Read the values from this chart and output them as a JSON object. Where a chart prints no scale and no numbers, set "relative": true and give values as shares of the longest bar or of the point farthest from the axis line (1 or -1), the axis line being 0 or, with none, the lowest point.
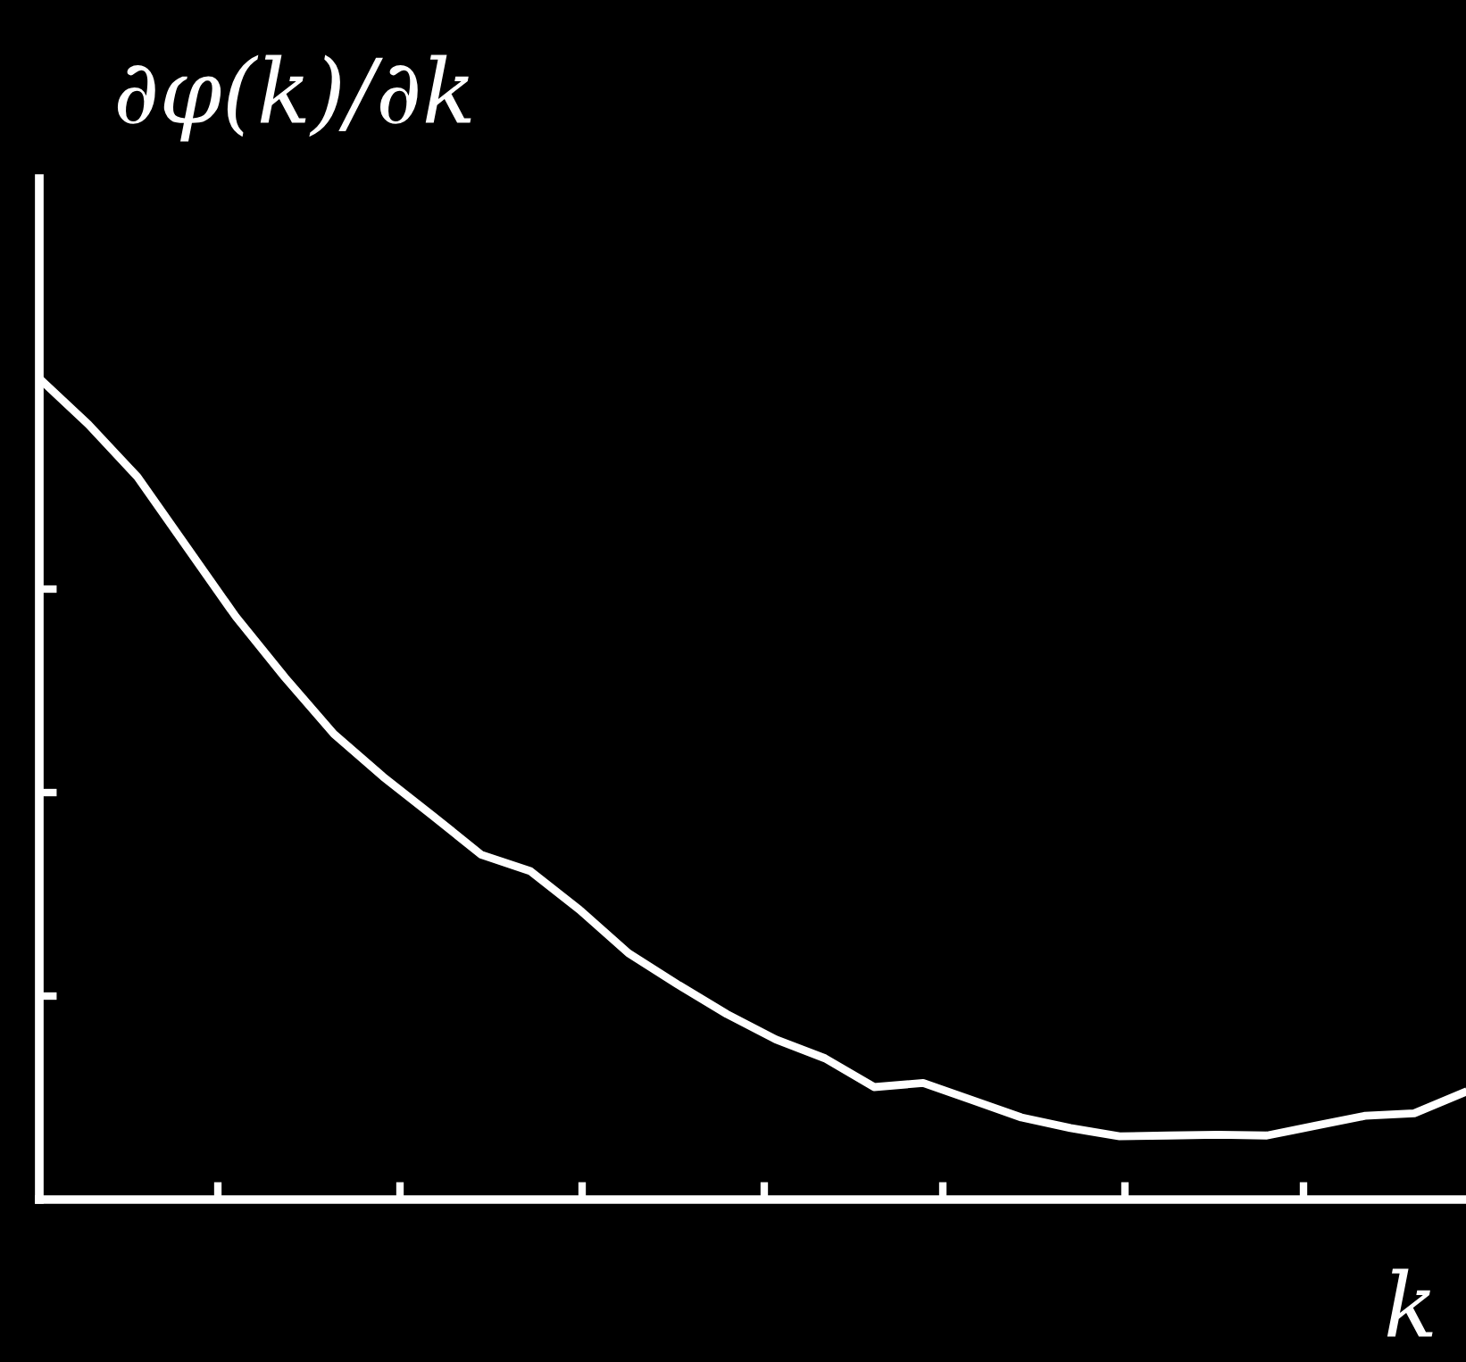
{
  "chart_data": {
    "type": "line",
    "relative": true,
    "ylabel": "∂φ(k)/∂k",
    "xlabel": "k",
    "grid": false,
    "legend": false,
    "marker": "none",
    "line_style": "solid",
    "categories": [
      null,
      null,
      null,
      null,
      null,
      null,
      null,
      null,
      null,
      null,
      null,
      null,
      null,
      null,
      null,
      null,
      null,
      null,
      null,
      null,
      null,
      null,
      null,
      null,
      null,
      null,
      null,
      null,
      null,
      null
    ],
    "series": [
      {
        "color": "#ffffff",
        "values": [
          1.0,
          0.944,
          0.88,
          0.795,
          0.71,
          0.636,
          0.567,
          0.515,
          0.468,
          0.42,
          0.4,
          0.353,
          0.3,
          0.262,
          0.226,
          0.195,
          0.172,
          0.137,
          0.142,
          0.121,
          0.1,
          0.087,
          0.077,
          0.078,
          0.079,
          0.078,
          0.09,
          0.102,
          0.105,
          0.13
        ]
      }
    ]
  }
}
